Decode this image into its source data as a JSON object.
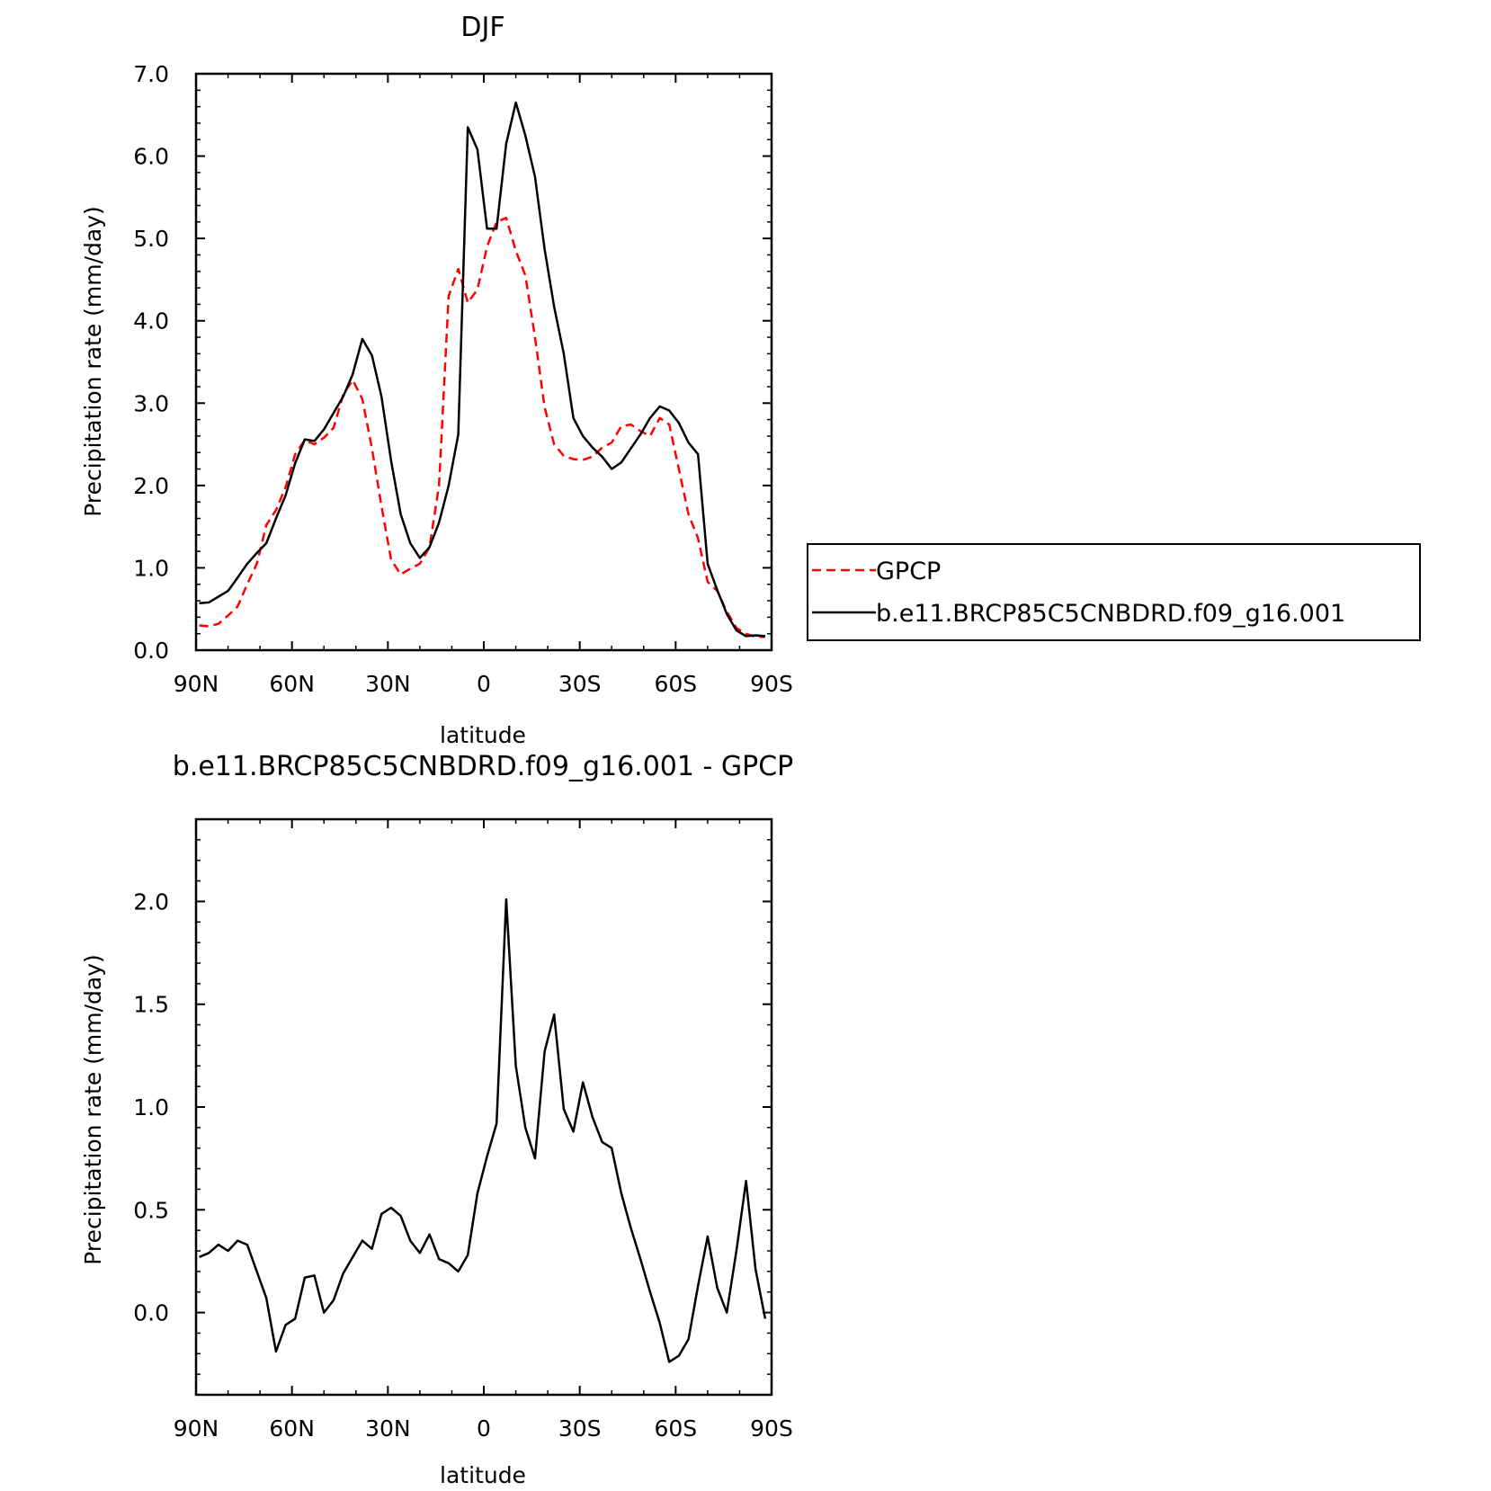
{
  "chart_data": [
    {
      "type": "line",
      "title": "DJF",
      "xlabel": "latitude",
      "ylabel": "Precipitation rate (mm/day)",
      "xlim": [
        90,
        -90
      ],
      "ylim": [
        0,
        7
      ],
      "x_tick_values": [
        90,
        60,
        30,
        0,
        -30,
        -60,
        -90
      ],
      "x_tick_labels": [
        "90N",
        "60N",
        "30N",
        "0",
        "30S",
        "60S",
        "90S"
      ],
      "y_tick_values": [
        0,
        1,
        2,
        3,
        4,
        5,
        6,
        7
      ],
      "y_tick_labels": [
        "0.0",
        "1.0",
        "2.0",
        "3.0",
        "4.0",
        "5.0",
        "6.0",
        "7.0"
      ],
      "grid": false,
      "legend_position": "right",
      "series": [
        {
          "name": "GPCP",
          "color": "#ff0000",
          "style": "dashed",
          "x": [
            89,
            86,
            83,
            80,
            77,
            74,
            71,
            68,
            65,
            62,
            59,
            56,
            53,
            50,
            47,
            44,
            41,
            38,
            35,
            32,
            29,
            26,
            23,
            20,
            17,
            14,
            11,
            8,
            5,
            2,
            -1,
            -4,
            -7,
            -10,
            -13,
            -16,
            -19,
            -22,
            -25,
            -28,
            -31,
            -34,
            -37,
            -40,
            -43,
            -46,
            -49,
            -52,
            -55,
            -58,
            -61,
            -64,
            -67,
            -70,
            -73,
            -76,
            -79,
            -82,
            -85,
            -88
          ],
          "y": [
            0.3,
            0.29,
            0.32,
            0.42,
            0.53,
            0.8,
            1.05,
            1.52,
            1.7,
            1.98,
            2.38,
            2.55,
            2.5,
            2.58,
            2.7,
            3.1,
            3.28,
            3.05,
            2.45,
            1.75,
            1.1,
            0.92,
            0.99,
            1.05,
            1.25,
            2.0,
            4.3,
            4.63,
            4.22,
            4.38,
            4.9,
            5.2,
            5.25,
            4.85,
            4.55,
            3.8,
            2.95,
            2.5,
            2.36,
            2.32,
            2.31,
            2.35,
            2.46,
            2.52,
            2.72,
            2.74,
            2.66,
            2.6,
            2.82,
            2.74,
            2.2,
            1.65,
            1.36,
            0.83,
            0.72,
            0.47,
            0.27,
            0.2,
            0.16,
            0.16
          ]
        },
        {
          "name": "b.e11.BRCP85C5CNBDRD.f09_g16.001",
          "color": "#000000",
          "style": "solid",
          "x": [
            89,
            86,
            83,
            80,
            77,
            74,
            71,
            68,
            65,
            62,
            59,
            56,
            53,
            50,
            47,
            44,
            41,
            38,
            35,
            32,
            29,
            26,
            23,
            20,
            17,
            14,
            11,
            8,
            5,
            2,
            -1,
            -4,
            -7,
            -10,
            -13,
            -16,
            -19,
            -22,
            -25,
            -28,
            -31,
            -34,
            -37,
            -40,
            -43,
            -46,
            -49,
            -52,
            -55,
            -58,
            -61,
            -64,
            -67,
            -70,
            -73,
            -76,
            -79,
            -82,
            -85,
            -88
          ],
          "y": [
            0.57,
            0.58,
            0.65,
            0.72,
            0.88,
            1.05,
            1.18,
            1.3,
            1.6,
            1.88,
            2.27,
            2.56,
            2.54,
            2.68,
            2.88,
            3.08,
            3.35,
            3.78,
            3.58,
            3.08,
            2.3,
            1.65,
            1.3,
            1.12,
            1.25,
            1.55,
            2.0,
            2.62,
            6.35,
            6.08,
            5.12,
            5.12,
            6.15,
            6.65,
            6.25,
            5.75,
            4.87,
            4.17,
            3.6,
            2.82,
            2.6,
            2.46,
            2.35,
            2.2,
            2.28,
            2.45,
            2.62,
            2.82,
            2.96,
            2.91,
            2.76,
            2.52,
            2.38,
            1.05,
            0.73,
            0.44,
            0.24,
            0.17,
            0.18,
            0.17
          ]
        }
      ]
    },
    {
      "type": "line",
      "title": "b.e11.BRCP85C5CNBDRD.f09_g16.001 - GPCP",
      "xlabel": "latitude",
      "ylabel": "Precipitation rate (mm/day)",
      "xlim": [
        90,
        -90
      ],
      "ylim": [
        -0.4,
        2.4
      ],
      "x_tick_values": [
        90,
        60,
        30,
        0,
        -30,
        -60,
        -90
      ],
      "x_tick_labels": [
        "90N",
        "60N",
        "30N",
        "0",
        "30S",
        "60S",
        "90S"
      ],
      "y_tick_values": [
        0,
        0.5,
        1,
        1.5,
        2
      ],
      "y_tick_labels": [
        "0.0",
        "0.5",
        "1.0",
        "1.5",
        "2.0"
      ],
      "grid": false,
      "series": [
        {
          "color": "#000000",
          "style": "solid",
          "x": [
            89,
            86,
            83,
            80,
            77,
            74,
            71,
            68,
            65,
            62,
            59,
            56,
            53,
            50,
            47,
            44,
            41,
            38,
            35,
            32,
            29,
            26,
            23,
            20,
            17,
            14,
            11,
            8,
            5,
            2,
            -1,
            -4,
            -7,
            -10,
            -13,
            -16,
            -19,
            -22,
            -25,
            -28,
            -31,
            -34,
            -37,
            -40,
            -43,
            -46,
            -49,
            -52,
            -55,
            -58,
            -61,
            -64,
            -67,
            -70,
            -73,
            -76,
            -79,
            -82,
            -85,
            -88
          ],
          "y": [
            0.27,
            0.29,
            0.33,
            0.3,
            0.35,
            0.33,
            0.2,
            0.07,
            -0.19,
            -0.06,
            -0.03,
            0.17,
            0.18,
            0.0,
            0.06,
            0.19,
            0.27,
            0.35,
            0.31,
            0.48,
            0.51,
            0.47,
            0.35,
            0.29,
            0.38,
            0.26,
            0.24,
            0.2,
            0.28,
            0.58,
            0.76,
            0.92,
            2.01,
            1.2,
            0.9,
            0.75,
            1.27,
            1.45,
            0.99,
            0.88,
            1.12,
            0.95,
            0.83,
            0.8,
            0.58,
            0.41,
            0.26,
            0.1,
            -0.05,
            -0.24,
            -0.21,
            -0.13,
            0.13,
            0.37,
            0.12,
            0.0,
            0.3,
            0.64,
            0.21,
            -0.03
          ]
        }
      ]
    }
  ]
}
